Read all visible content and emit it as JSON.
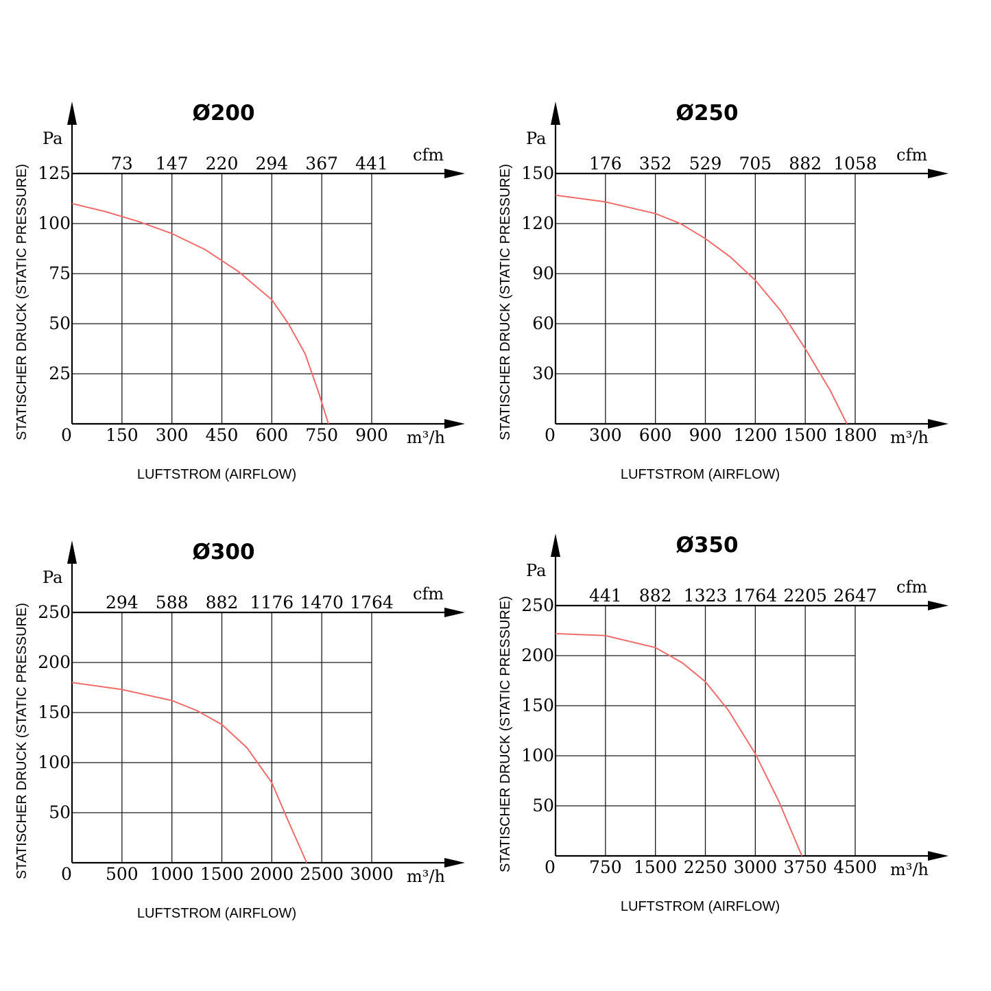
{
  "chart_data": [
    {
      "type": "line",
      "title": "Ø200",
      "ylabel": "STATISCHER DRUCK (STATIC PRESSURE)",
      "xlabel": "LUFTSTROM (AIRFLOW)",
      "y_unit": "Pa",
      "x_unit": "m³/h",
      "x2_unit": "cfm",
      "origin_label": "0",
      "xlim": [
        0,
        900
      ],
      "ylim": [
        0,
        125
      ],
      "x_ticks": [
        "150",
        "300",
        "450",
        "600",
        "750",
        "900"
      ],
      "x2_ticks": [
        "73",
        "147",
        "220",
        "294",
        "367",
        "441"
      ],
      "y_ticks": [
        "25",
        "50",
        "75",
        "100",
        "125"
      ],
      "grid": true,
      "series": [
        {
          "x": [
            0,
            100,
            200,
            300,
            400,
            500,
            600,
            650,
            700,
            740,
            770
          ],
          "y": [
            110,
            106,
            101,
            95,
            87,
            76,
            62,
            50,
            35,
            16,
            0
          ]
        }
      ]
    },
    {
      "type": "line",
      "title": "Ø250",
      "ylabel": "STATISCHER DRUCK (STATIC PRESSURE)",
      "xlabel": "LUFTSTROM (AIRFLOW)",
      "y_unit": "Pa",
      "x_unit": "m³/h",
      "x2_unit": "cfm",
      "origin_label": "0",
      "xlim": [
        0,
        1800
      ],
      "ylim": [
        0,
        150
      ],
      "x_ticks": [
        "300",
        "600",
        "900",
        "1200",
        "1500",
        "1800"
      ],
      "x2_ticks": [
        "176",
        "352",
        "529",
        "705",
        "882",
        "1058"
      ],
      "y_ticks": [
        "30",
        "60",
        "90",
        "120",
        "150"
      ],
      "grid": true,
      "series": [
        {
          "x": [
            0,
            300,
            600,
            750,
            900,
            1050,
            1200,
            1350,
            1500,
            1650,
            1750
          ],
          "y": [
            137,
            133,
            126,
            120,
            111,
            100,
            86,
            68,
            45,
            20,
            0
          ]
        }
      ]
    },
    {
      "type": "line",
      "title": "Ø300",
      "ylabel": "STATISCHER DRUCK (STATIC PRESSURE)",
      "xlabel": "LUFTSTROM (AIRFLOW)",
      "y_unit": "Pa",
      "x_unit": "m³/h",
      "x2_unit": "cfm",
      "origin_label": "0",
      "xlim": [
        0,
        3000
      ],
      "ylim": [
        0,
        250
      ],
      "x_ticks": [
        "500",
        "1000",
        "1500",
        "2000",
        "2500",
        "3000"
      ],
      "x2_ticks": [
        "294",
        "588",
        "882",
        "1176",
        "1470",
        "1764"
      ],
      "y_ticks": [
        "50",
        "100",
        "150",
        "200",
        "250"
      ],
      "grid": true,
      "series": [
        {
          "x": [
            0,
            500,
            1000,
            1250,
            1500,
            1750,
            2000,
            2150,
            2350
          ],
          "y": [
            180,
            173,
            162,
            152,
            138,
            115,
            80,
            45,
            0
          ]
        }
      ]
    },
    {
      "type": "line",
      "title": "Ø350",
      "ylabel": "STATISCHER DRUCK (STATIC PRESSURE)",
      "xlabel": "LUFTSTROM (AIRFLOW)",
      "y_unit": "Pa",
      "x_unit": "m³/h",
      "x2_unit": "cfm",
      "origin_label": "0",
      "xlim": [
        0,
        4500
      ],
      "ylim": [
        0,
        250
      ],
      "x_ticks": [
        "750",
        "1500",
        "2250",
        "3000",
        "3750",
        "4500"
      ],
      "x2_ticks": [
        "441",
        "882",
        "1323",
        "1764",
        "2205",
        "2647"
      ],
      "y_ticks": [
        "50",
        "100",
        "150",
        "200",
        "250"
      ],
      "grid": true,
      "series": [
        {
          "x": [
            0,
            750,
            1500,
            1900,
            2250,
            2600,
            3000,
            3350,
            3700
          ],
          "y": [
            222,
            220,
            208,
            193,
            174,
            145,
            102,
            55,
            0
          ]
        }
      ]
    }
  ]
}
